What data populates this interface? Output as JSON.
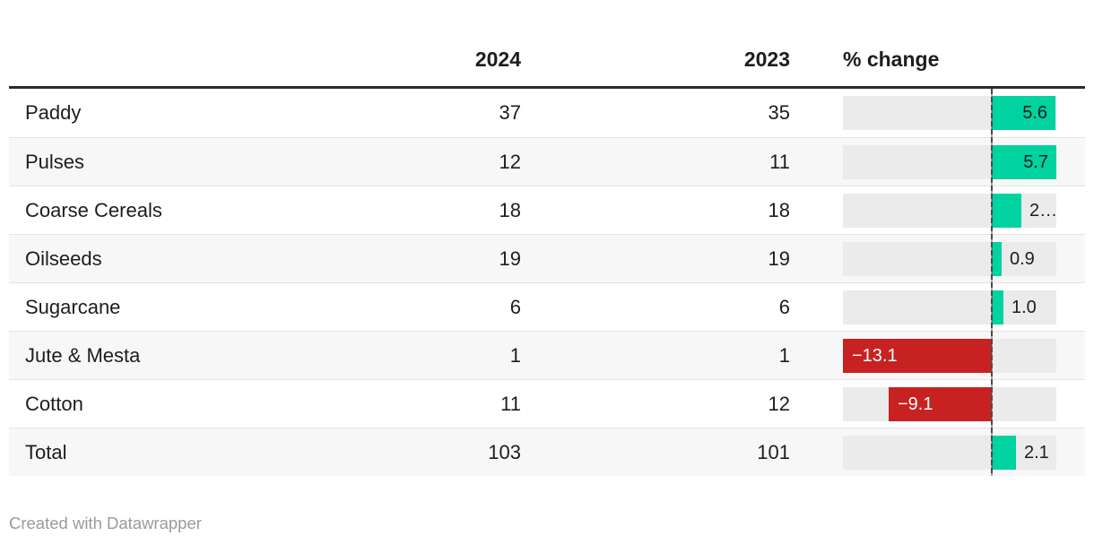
{
  "header": {
    "col_2024": "2024",
    "col_2023": "2023",
    "col_change": "% change"
  },
  "footer": {
    "credit": "Created with Datawrapper"
  },
  "colors": {
    "positive_bar": "#00d2a0",
    "negative_bar": "#c72221",
    "bar_track": "#ebebeb",
    "row_stripe": "#f7f7f7",
    "axis_line": "#4a4a4a",
    "header_rule": "#2b2b2b",
    "text": "#1d1d1d",
    "credit_text": "#9a9a9a"
  },
  "chart_data": {
    "type": "table",
    "title": "",
    "columns": [
      "",
      "2024",
      "2023",
      "% change"
    ],
    "bar_column": "% change",
    "bar_axis_range": [
      -13.1,
      5.7
    ],
    "rows": [
      {
        "label": "Paddy",
        "y2024": "37",
        "y2023": "35",
        "change_value": 5.6,
        "change_label": "5.6",
        "label_position": "inside"
      },
      {
        "label": "Pulses",
        "y2024": "12",
        "y2023": "11",
        "change_value": 5.7,
        "change_label": "5.7",
        "label_position": "inside"
      },
      {
        "label": "Coarse Cereals",
        "y2024": "18",
        "y2023": "18",
        "change_value": 2.6,
        "change_label": "2…",
        "label_position": "outside"
      },
      {
        "label": "Oilseeds",
        "y2024": "19",
        "y2023": "19",
        "change_value": 0.9,
        "change_label": "0.9",
        "label_position": "outside"
      },
      {
        "label": "Sugarcane",
        "y2024": "6",
        "y2023": "6",
        "change_value": 1.0,
        "change_label": "1.0",
        "label_position": "outside"
      },
      {
        "label": "Jute & Mesta",
        "y2024": "1",
        "y2023": "1",
        "change_value": -13.1,
        "change_label": "−13.1",
        "label_position": "inside"
      },
      {
        "label": "Cotton",
        "y2024": "11",
        "y2023": "12",
        "change_value": -9.1,
        "change_label": "−9.1",
        "label_position": "inside"
      },
      {
        "label": "Total",
        "y2024": "103",
        "y2023": "101",
        "change_value": 2.1,
        "change_label": "2.1",
        "label_position": "outside"
      }
    ]
  }
}
